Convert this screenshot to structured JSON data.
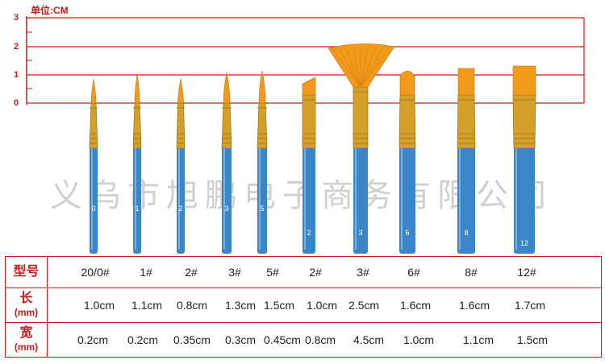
{
  "unit_label": "单位:CM",
  "ruler": {
    "marks": [
      "3",
      "2",
      "1",
      "0"
    ],
    "color": "#cc1b1b"
  },
  "watermark": "义乌市旭鹏电子商务有限公司",
  "colors": {
    "accent": "#cc1b1b",
    "handle": "#3a86c6",
    "ferrule": "#d4a02a",
    "bristle": "#f29a1c"
  },
  "brushes": [
    {
      "type": "round",
      "handle_number": "0"
    },
    {
      "type": "round",
      "handle_number": "1"
    },
    {
      "type": "round",
      "handle_number": "2"
    },
    {
      "type": "round",
      "handle_number": "3"
    },
    {
      "type": "round",
      "handle_number": "5"
    },
    {
      "type": "angle",
      "handle_number": "2"
    },
    {
      "type": "fan",
      "handle_number": "3"
    },
    {
      "type": "filbert",
      "handle_number": "6"
    },
    {
      "type": "flat",
      "handle_number": "8"
    },
    {
      "type": "flat",
      "handle_number": "12"
    }
  ],
  "table": {
    "rows": [
      {
        "header": "型号",
        "sub": "",
        "values": [
          "20/0#",
          "1#",
          "2#",
          "3#",
          "5#",
          "2#",
          "3#",
          "6#",
          "8#",
          "12#"
        ]
      },
      {
        "header": "长",
        "sub": "(mm)",
        "values": [
          "1.0cm",
          "1.1cm",
          "0.8cm",
          "1.3cm",
          "1.5cm",
          "1.0cm",
          "2.5cm",
          "1.6cm",
          "1.6cm",
          "1.7cm"
        ]
      },
      {
        "header": "宽",
        "sub": "(mm)",
        "values": [
          "0.2cm",
          "0.2cm",
          "0.35cm",
          "0.3cm",
          "0.45cm",
          "0.8cm",
          "4.5cm",
          "1.0cm",
          "1.1cm",
          "1.5cm"
        ]
      }
    ]
  }
}
